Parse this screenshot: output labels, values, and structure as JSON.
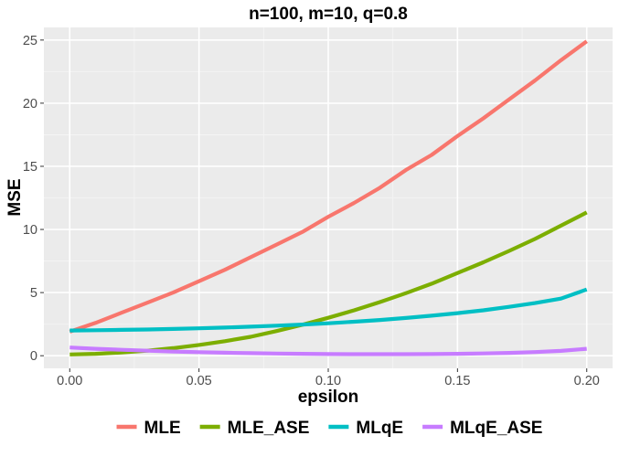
{
  "chart_data": {
    "type": "line",
    "title": "n=100, m=10, q=0.8",
    "xlabel": "epsilon",
    "ylabel": "MSE",
    "xlim": [
      -0.01,
      0.21
    ],
    "ylim": [
      -1.0,
      26.0
    ],
    "x_ticks": [
      0.0,
      0.05,
      0.1,
      0.15,
      0.2
    ],
    "x_tick_labels": [
      "0.00",
      "0.05",
      "0.10",
      "0.15",
      "0.20"
    ],
    "y_ticks": [
      0,
      5,
      10,
      15,
      20,
      25
    ],
    "y_tick_labels": [
      "0",
      "5",
      "10",
      "15",
      "20",
      "25"
    ],
    "grid": true,
    "legend_position": "bottom",
    "x": [
      0.0,
      0.01,
      0.02,
      0.03,
      0.04,
      0.05,
      0.06,
      0.07,
      0.08,
      0.09,
      0.1,
      0.11,
      0.12,
      0.13,
      0.14,
      0.15,
      0.16,
      0.17,
      0.18,
      0.19,
      0.2
    ],
    "series": [
      {
        "name": "MLE",
        "color": "#F8766D",
        "values": [
          1.9,
          2.6,
          3.4,
          4.2,
          5.0,
          5.9,
          6.8,
          7.8,
          8.8,
          9.8,
          11.0,
          12.1,
          13.3,
          14.7,
          15.9,
          17.4,
          18.8,
          20.3,
          21.8,
          23.4,
          24.9
        ]
      },
      {
        "name": "MLE_ASE",
        "color": "#7CAE00",
        "values": [
          0.1,
          0.15,
          0.25,
          0.4,
          0.6,
          0.85,
          1.15,
          1.5,
          1.95,
          2.45,
          3.0,
          3.6,
          4.25,
          4.95,
          5.7,
          6.55,
          7.4,
          8.3,
          9.25,
          10.3,
          11.35
        ]
      },
      {
        "name": "MLqE",
        "color": "#00BFC4",
        "values": [
          2.0,
          2.02,
          2.05,
          2.08,
          2.12,
          2.17,
          2.23,
          2.3,
          2.38,
          2.47,
          2.57,
          2.69,
          2.83,
          2.99,
          3.17,
          3.37,
          3.6,
          3.87,
          4.17,
          4.52,
          5.25
        ]
      },
      {
        "name": "MLqE_ASE",
        "color": "#C77CFF",
        "values": [
          0.65,
          0.55,
          0.47,
          0.4,
          0.33,
          0.28,
          0.24,
          0.2,
          0.17,
          0.15,
          0.13,
          0.12,
          0.12,
          0.12,
          0.13,
          0.15,
          0.18,
          0.22,
          0.29,
          0.38,
          0.55
        ]
      }
    ]
  }
}
